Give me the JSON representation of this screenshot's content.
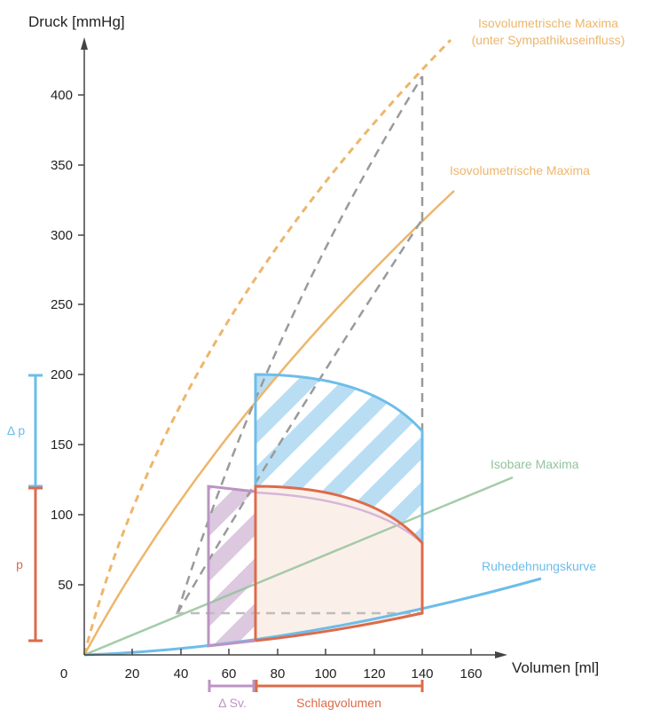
{
  "colors": {
    "orange": "#EDB66C",
    "green": "#94C39A",
    "blue": "#6CBDE9",
    "red": "#DC6B4A",
    "purple": "#BB94C3",
    "gray": "#9A9A9A",
    "red_fill": "#FBEFEA"
  },
  "axes": {
    "y_title": "Druck [mmHg]",
    "x_title": "Volumen [ml]",
    "origin": "0",
    "y_ticks": [
      "50",
      "100",
      "150",
      "200",
      "250",
      "300",
      "350",
      "400"
    ],
    "x_ticks": [
      "20",
      "40",
      "60",
      "80",
      "100",
      "120",
      "140",
      "160"
    ]
  },
  "curves": {
    "isovol_sympathikus_line1": "Isovolumetrische Maxima",
    "isovol_sympathikus_line2": "(unter Sympathikuseinfluss)",
    "isovol": "Isovolumetrische Maxima",
    "isobar": "Isobare Maxima",
    "ruhe": "Ruhedehnungskurve"
  },
  "brackets": {
    "delta_p": "Δ p",
    "p": "p",
    "delta_sv": "Δ Sv.",
    "schlagvolumen": "Schlagvolumen"
  }
}
